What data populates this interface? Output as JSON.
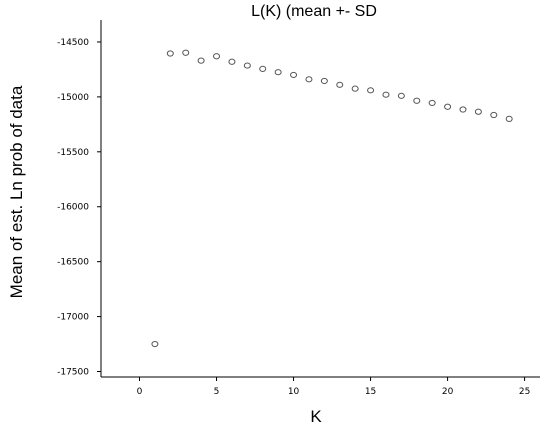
{
  "chart_data": {
    "type": "scatter",
    "title": "L(K) (mean +- SD",
    "xlabel": "K",
    "ylabel": "Mean of est. Ln prob of data",
    "xlim": [
      -2.5,
      26
    ],
    "ylim": [
      -17550,
      -14300
    ],
    "x_ticks": [
      0,
      5,
      10,
      15,
      20,
      25
    ],
    "y_ticks": [
      -14500,
      -15000,
      -15500,
      -16000,
      -16500,
      -17000,
      -17500
    ],
    "grid": false,
    "x": [
      1,
      2,
      3,
      4,
      5,
      6,
      7,
      8,
      9,
      10,
      11,
      12,
      13,
      14,
      15,
      16,
      17,
      18,
      19,
      20,
      21,
      22,
      23,
      24
    ],
    "y": [
      -17250,
      -14605,
      -14598,
      -14670,
      -14630,
      -14680,
      -14715,
      -14745,
      -14775,
      -14800,
      -14840,
      -14855,
      -14890,
      -14925,
      -14940,
      -14980,
      -14990,
      -15035,
      -15055,
      -15090,
      -15115,
      -15135,
      -15165,
      -15200
    ]
  }
}
